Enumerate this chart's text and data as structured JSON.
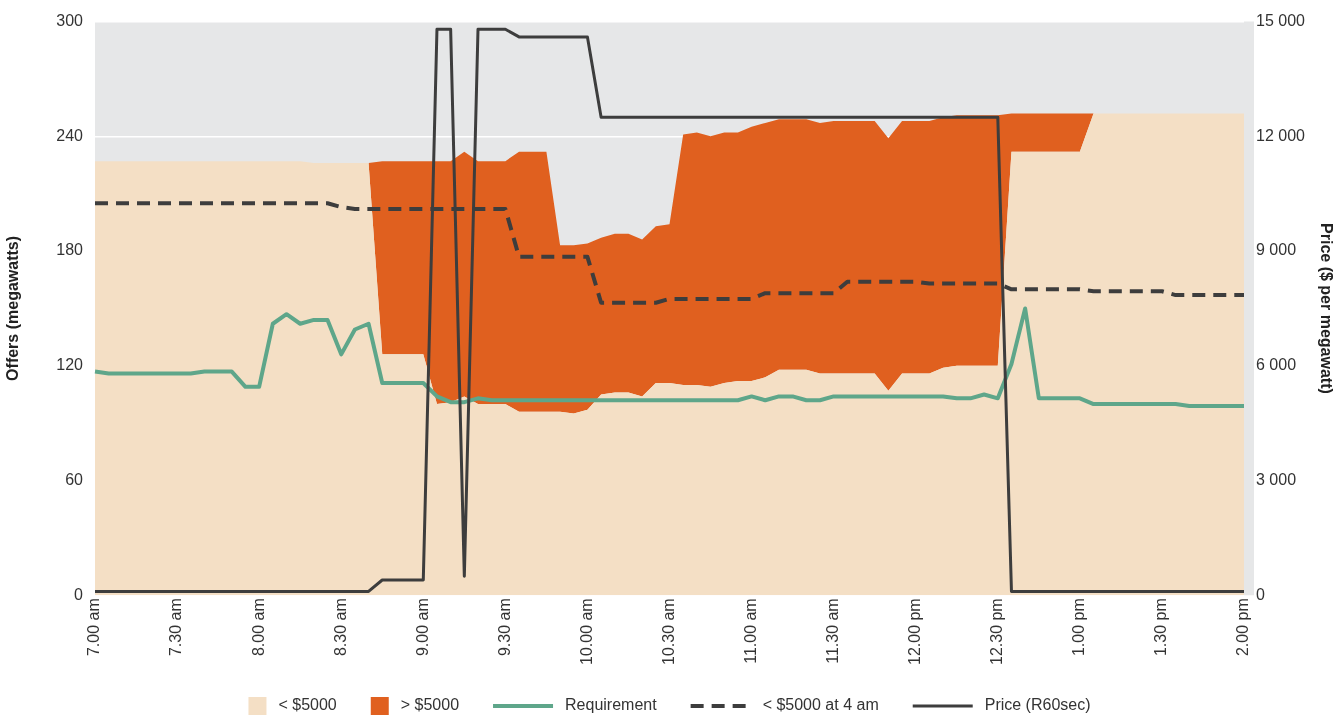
{
  "chart_data": {
    "type": "area",
    "stacked": true,
    "ylabel": "Offers (megawatts)",
    "y2label": "Price ($ per megawatt)",
    "categories": [
      "7.00 am",
      null,
      null,
      null,
      null,
      null,
      "7.30 am",
      null,
      null,
      null,
      null,
      null,
      "8.00 am",
      null,
      null,
      null,
      null,
      null,
      "8.30 am",
      null,
      null,
      null,
      null,
      null,
      "9.00 am",
      null,
      null,
      null,
      null,
      null,
      "9.30 am",
      null,
      null,
      null,
      null,
      null,
      "10.00 am",
      null,
      null,
      null,
      null,
      null,
      "10.30 am",
      null,
      null,
      null,
      null,
      null,
      "11.00 am",
      null,
      null,
      null,
      null,
      null,
      "11.30 am",
      null,
      null,
      null,
      null,
      null,
      "12.00 pm",
      null,
      null,
      null,
      null,
      null,
      "12.30 pm",
      null,
      null,
      null,
      null,
      null,
      "1.00 pm",
      null,
      null,
      null,
      null,
      null,
      "1.30 pm",
      null,
      null,
      null,
      null,
      null,
      "2.00 pm"
    ],
    "ylim": [
      0,
      300
    ],
    "yticks": [
      0,
      60,
      120,
      180,
      240,
      300
    ],
    "y2lim": [
      0,
      15000
    ],
    "y2ticks": [
      {
        "value": 0,
        "label": "0"
      },
      {
        "value": 3000,
        "label": "3 000"
      },
      {
        "value": 6000,
        "label": "6 000"
      },
      {
        "value": 9000,
        "label": "9 000"
      },
      {
        "value": 12000,
        "label": "12 000"
      },
      {
        "value": 15000,
        "label": "15 000"
      }
    ],
    "grid": "y",
    "legend": "bottom",
    "marker": "none",
    "series": [
      {
        "name": "< $5000",
        "color": "#f4dfc5",
        "values": [
          227,
          227,
          227,
          227,
          227,
          227,
          227,
          227,
          227,
          227,
          227,
          227,
          227,
          227,
          227,
          227,
          226,
          226,
          226,
          226,
          226,
          126,
          126,
          126,
          126,
          100,
          101,
          104,
          100,
          100,
          100,
          96,
          96,
          96,
          96,
          95,
          97,
          105,
          106,
          106,
          104,
          111,
          111,
          110,
          110,
          109,
          111,
          112,
          112,
          114,
          118,
          118,
          118,
          116,
          116,
          116,
          116,
          116,
          107,
          116,
          116,
          116,
          119,
          120,
          120,
          120,
          120,
          232,
          232,
          232,
          232,
          232,
          232,
          252,
          252,
          252,
          252,
          252,
          252,
          252,
          252,
          252,
          252,
          252,
          252
        ]
      },
      {
        "name": "> $5000",
        "color": "#e0601f",
        "values": [
          0,
          0,
          0,
          0,
          0,
          0,
          0,
          0,
          0,
          0,
          0,
          0,
          0,
          0,
          0,
          0,
          0,
          0,
          0,
          0,
          0,
          101,
          101,
          101,
          101,
          127,
          126,
          128,
          127,
          127,
          127,
          136,
          136,
          136,
          87,
          88,
          87,
          82,
          83,
          83,
          82,
          82,
          83,
          131,
          132,
          131,
          131,
          130,
          133,
          133,
          131,
          131,
          131,
          131,
          132,
          132,
          132,
          132,
          132,
          132,
          132,
          132,
          131,
          131,
          131,
          131,
          131,
          20,
          20,
          20,
          20,
          20,
          20,
          0,
          0,
          0,
          0,
          0,
          0,
          0,
          0,
          0,
          0,
          0,
          0
        ]
      },
      {
        "name": "Requirement",
        "type": "line",
        "color": "#5ea68a",
        "line_style": "solid",
        "values": [
          117,
          116,
          116,
          116,
          116,
          116,
          116,
          116,
          117,
          117,
          117,
          109,
          109,
          142,
          147,
          142,
          144,
          144,
          126,
          139,
          142,
          111,
          111,
          111,
          111,
          104,
          101,
          101,
          103,
          102,
          102,
          102,
          102,
          102,
          102,
          102,
          102,
          102,
          102,
          102,
          102,
          102,
          102,
          102,
          102,
          102,
          102,
          102,
          104,
          102,
          104,
          104,
          102,
          102,
          104,
          104,
          104,
          104,
          104,
          104,
          104,
          104,
          104,
          103,
          103,
          105,
          103,
          121,
          150,
          103,
          103,
          103,
          103,
          100,
          100,
          100,
          100,
          100,
          100,
          100,
          99,
          99,
          99,
          99,
          99
        ]
      },
      {
        "name": "< $5000 at 4 am",
        "type": "line",
        "color": "#3d3d3d",
        "line_style": "dashed",
        "values": [
          205,
          205,
          205,
          205,
          205,
          205,
          205,
          205,
          205,
          205,
          205,
          205,
          205,
          205,
          205,
          205,
          205,
          205,
          203,
          202,
          202,
          202,
          202,
          202,
          202,
          202,
          202,
          202,
          202,
          202,
          202,
          177,
          177,
          177,
          177,
          177,
          177,
          153,
          153,
          153,
          153,
          153,
          155,
          155,
          155,
          155,
          155,
          155,
          155,
          158,
          158,
          158,
          158,
          158,
          158,
          164,
          164,
          164,
          164,
          164,
          164,
          163,
          163,
          163,
          163,
          163,
          163,
          160,
          160,
          160,
          160,
          160,
          160,
          159,
          159,
          159,
          159,
          159,
          159,
          157,
          157,
          157,
          157,
          157,
          157
        ]
      },
      {
        "name": "Price (R60sec)",
        "type": "line",
        "axis": "y2",
        "color": "#3d3d3d",
        "line_style": "solid",
        "values": [
          100,
          100,
          100,
          100,
          100,
          100,
          100,
          100,
          100,
          100,
          100,
          100,
          100,
          100,
          100,
          100,
          100,
          100,
          100,
          100,
          100,
          400,
          400,
          400,
          400,
          14800,
          14800,
          500,
          14800,
          14800,
          14800,
          14600,
          14600,
          14600,
          14600,
          14600,
          14600,
          12500,
          12500,
          12500,
          12500,
          12500,
          12500,
          12500,
          12500,
          12500,
          12500,
          12500,
          12500,
          12500,
          12500,
          12500,
          12500,
          12500,
          12500,
          12500,
          12500,
          12500,
          12500,
          12500,
          12500,
          12500,
          12500,
          12500,
          12500,
          12500,
          12500,
          100,
          100,
          100,
          100,
          100,
          100,
          100,
          100,
          100,
          100,
          100,
          100,
          100,
          100,
          100,
          100,
          100,
          100
        ]
      }
    ]
  }
}
